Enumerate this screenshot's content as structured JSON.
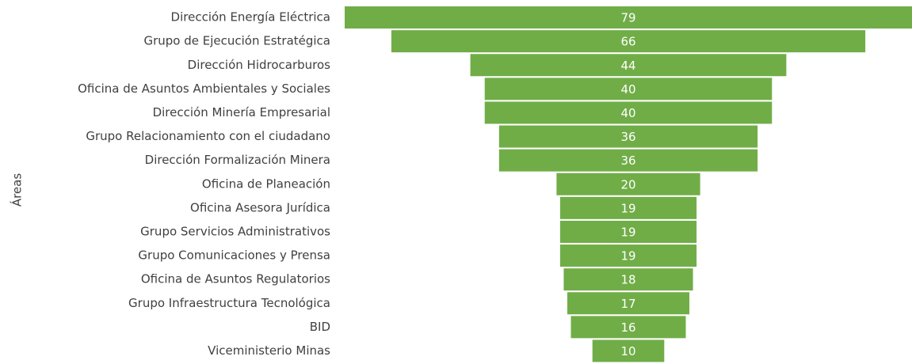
{
  "chart_data": {
    "type": "funnel",
    "y_label": "Áreas",
    "color": "#70ad47",
    "categories": [
      "Dirección Energía Eléctrica",
      "Grupo de Ejecución Estratégica",
      "Dirección Hidrocarburos",
      "Oficina de Asuntos Ambientales y Sociales",
      "Dirección Minería Empresarial",
      "Grupo Relacionamiento con el ciudadano",
      "Dirección Formalización Minera",
      "Oficina de Planeación",
      "Oficina Asesora Jurídica",
      "Grupo Servicios Administrativos",
      "Grupo Comunicaciones y Prensa",
      "Oficina de Asuntos Regulatorios",
      "Grupo Infraestructura Tecnológica",
      "BID",
      "Viceministerio Minas"
    ],
    "values": [
      79,
      66,
      44,
      40,
      40,
      36,
      36,
      20,
      19,
      19,
      19,
      18,
      17,
      16,
      10
    ]
  }
}
